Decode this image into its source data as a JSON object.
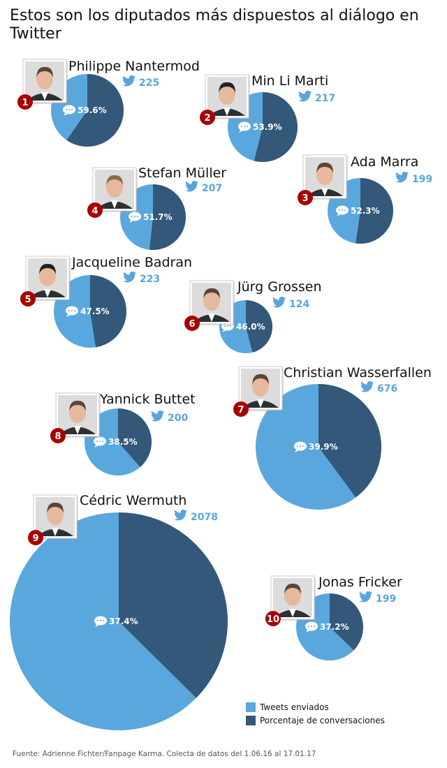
{
  "title": "Estos son los diputados más dispuestos al diálogo en Twitter",
  "colors": {
    "tweets": "#5aa7dd",
    "conversations": "#33587a",
    "badge": "#a80000"
  },
  "icons": {
    "bubble": "speech-bubble-icon",
    "bird": "twitter-bird-icon"
  },
  "chart_data": {
    "type": "pie",
    "series_names": [
      "Tweets enviados",
      "Porcentaje de conversaciones"
    ],
    "items": [
      {
        "rank": "1",
        "name": "Philippe Nantermod",
        "tweets": 225,
        "tweets_label": "225",
        "conversation_pct": 59.6,
        "pct_label": "59.6%"
      },
      {
        "rank": "2",
        "name": "Min Li Marti",
        "tweets": 217,
        "tweets_label": "217",
        "conversation_pct": 53.9,
        "pct_label": "53.9%"
      },
      {
        "rank": "3",
        "name": "Ada Marra",
        "tweets": 199,
        "tweets_label": "199",
        "conversation_pct": 52.3,
        "pct_label": "52.3%"
      },
      {
        "rank": "4",
        "name": "Stefan Müller",
        "tweets": 207,
        "tweets_label": "207",
        "conversation_pct": 51.7,
        "pct_label": "51.7%"
      },
      {
        "rank": "5",
        "name": "Jacqueline Badran",
        "tweets": 223,
        "tweets_label": "223",
        "conversation_pct": 47.5,
        "pct_label": "47.5%"
      },
      {
        "rank": "6",
        "name": "Jürg Grossen",
        "tweets": 124,
        "tweets_label": "124",
        "conversation_pct": 46.0,
        "pct_label": "46.0%"
      },
      {
        "rank": "7",
        "name": "Christian Wasserfallen",
        "tweets": 676,
        "tweets_label": "676",
        "conversation_pct": 39.9,
        "pct_label": "39.9%"
      },
      {
        "rank": "8",
        "name": "Yannick Buttet",
        "tweets": 200,
        "tweets_label": "200",
        "conversation_pct": 38.5,
        "pct_label": "38.5%"
      },
      {
        "rank": "9",
        "name": "Cédric Wermuth",
        "tweets": 2078,
        "tweets_label": "2078",
        "conversation_pct": 37.4,
        "pct_label": "37.4%"
      },
      {
        "rank": "10",
        "name": "Jonas Fricker",
        "tweets": 199,
        "tweets_label": "199",
        "conversation_pct": 37.2,
        "pct_label": "37.2%"
      }
    ]
  },
  "legend": {
    "tweets": "Tweets enviados",
    "conversations": "Porcentaje de conversaciones"
  },
  "source": "Fuente: Adrienne Fichter/Fanpage Karma. Colecta de datos del 1.06.16 al 17.01.17"
}
